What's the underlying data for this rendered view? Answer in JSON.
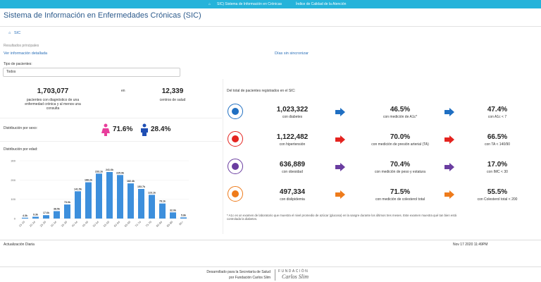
{
  "nav": {
    "brand": "SIC) Sistema de Información en Crónicas",
    "link": "Índice de Calidad de la Atención"
  },
  "header": {
    "title": "Sistema de Información en Enfermedades Crónicas (SIC)",
    "breadcrumb": "SIC"
  },
  "summary": {
    "section": "Resultados principales",
    "detail_link": "Ver información detallada",
    "sync_link": "Días sin sincronizar",
    "filter_label": "Tipo de pacientes:",
    "filter_value": "Todos",
    "patients": "1,703,077",
    "patients_label": "pacientes con diagnóstico de una enfermedad crónica y al menos una consulta",
    "joiner": "en",
    "centers": "12,339",
    "centers_label": "centros de salud",
    "sex_label": "Distribución por sexo:",
    "female": "71.6%",
    "male": "28.4%"
  },
  "indicators": {
    "intro": "Del total de pacientes registrados en el SIC:",
    "rows": [
      {
        "total": "1,023,322",
        "total_label": "con diabetes",
        "measured": "46.5%",
        "measured_label": "con medición de A1c*",
        "controlled": "47.4%",
        "controlled_label": "con A1c < 7"
      },
      {
        "total": "1,122,482",
        "total_label": "con hipertensión",
        "measured": "70.0%",
        "measured_label": "con medición de presión arterial (TA)",
        "controlled": "66.5%",
        "controlled_label": "con TA < 140/90"
      },
      {
        "total": "636,889",
        "total_label": "con obesidad",
        "measured": "70.4%",
        "measured_label": "con medición de peso y estatura",
        "controlled": "17.0%",
        "controlled_label": "con IMC < 30"
      },
      {
        "total": "497,334",
        "total_label": "con dislipidemia",
        "measured": "71.5%",
        "measured_label": "con medición de colesterol total",
        "controlled": "55.5%",
        "controlled_label": "con Colesterol total < 200"
      }
    ],
    "footnote": "* A1c es un examen de laboratorio que muestra el nivel promedio de azúcar (glucosa) en la sangre durante los últimos tres meses. Este examen muestra qué tan bien está controlada la diabetes."
  },
  "status": {
    "left": "Actualización Diaria",
    "right": "Nov 17 2020 11:49PM"
  },
  "footer": {
    "line1": "Desarrollado para la Secretaría de Salud",
    "line2": "por Fundación Carlos Slim",
    "logo_top": "FUNDACIÓN",
    "logo_name": "Carlos Slim"
  },
  "chart_data": {
    "type": "bar",
    "title": "Distribución por edad:",
    "categories": [
      "15-19",
      "20-24",
      "25-29",
      "30-34",
      "35-39",
      "40-44",
      "45-49",
      "50-54",
      "55-59",
      "60-64",
      "65-69",
      "70-74",
      "75-79",
      "80-84",
      "85-89",
      "90+"
    ],
    "values": [
      4.3,
      9.3,
      17.6,
      38.5,
      73.0,
      141.5,
      188.2,
      233.1,
      241.6,
      225.9,
      182.4,
      153.7,
      123.1,
      78.1,
      32.0,
      5.8
    ],
    "value_labels": [
      "4.3k",
      "9.3k",
      "17.6k",
      "38.5k",
      "73.0k",
      "141.5k",
      "188.2k",
      "233.1k",
      "241.6k",
      "225.9k",
      "182.4k",
      "153.7k",
      "123.1k",
      "78.1k",
      "32.0k",
      "5.8k"
    ],
    "color": "#3d8fdc",
    "ylim": [
      0,
      300
    ],
    "yticks": [
      0,
      100,
      200,
      300
    ],
    "grid": true
  }
}
